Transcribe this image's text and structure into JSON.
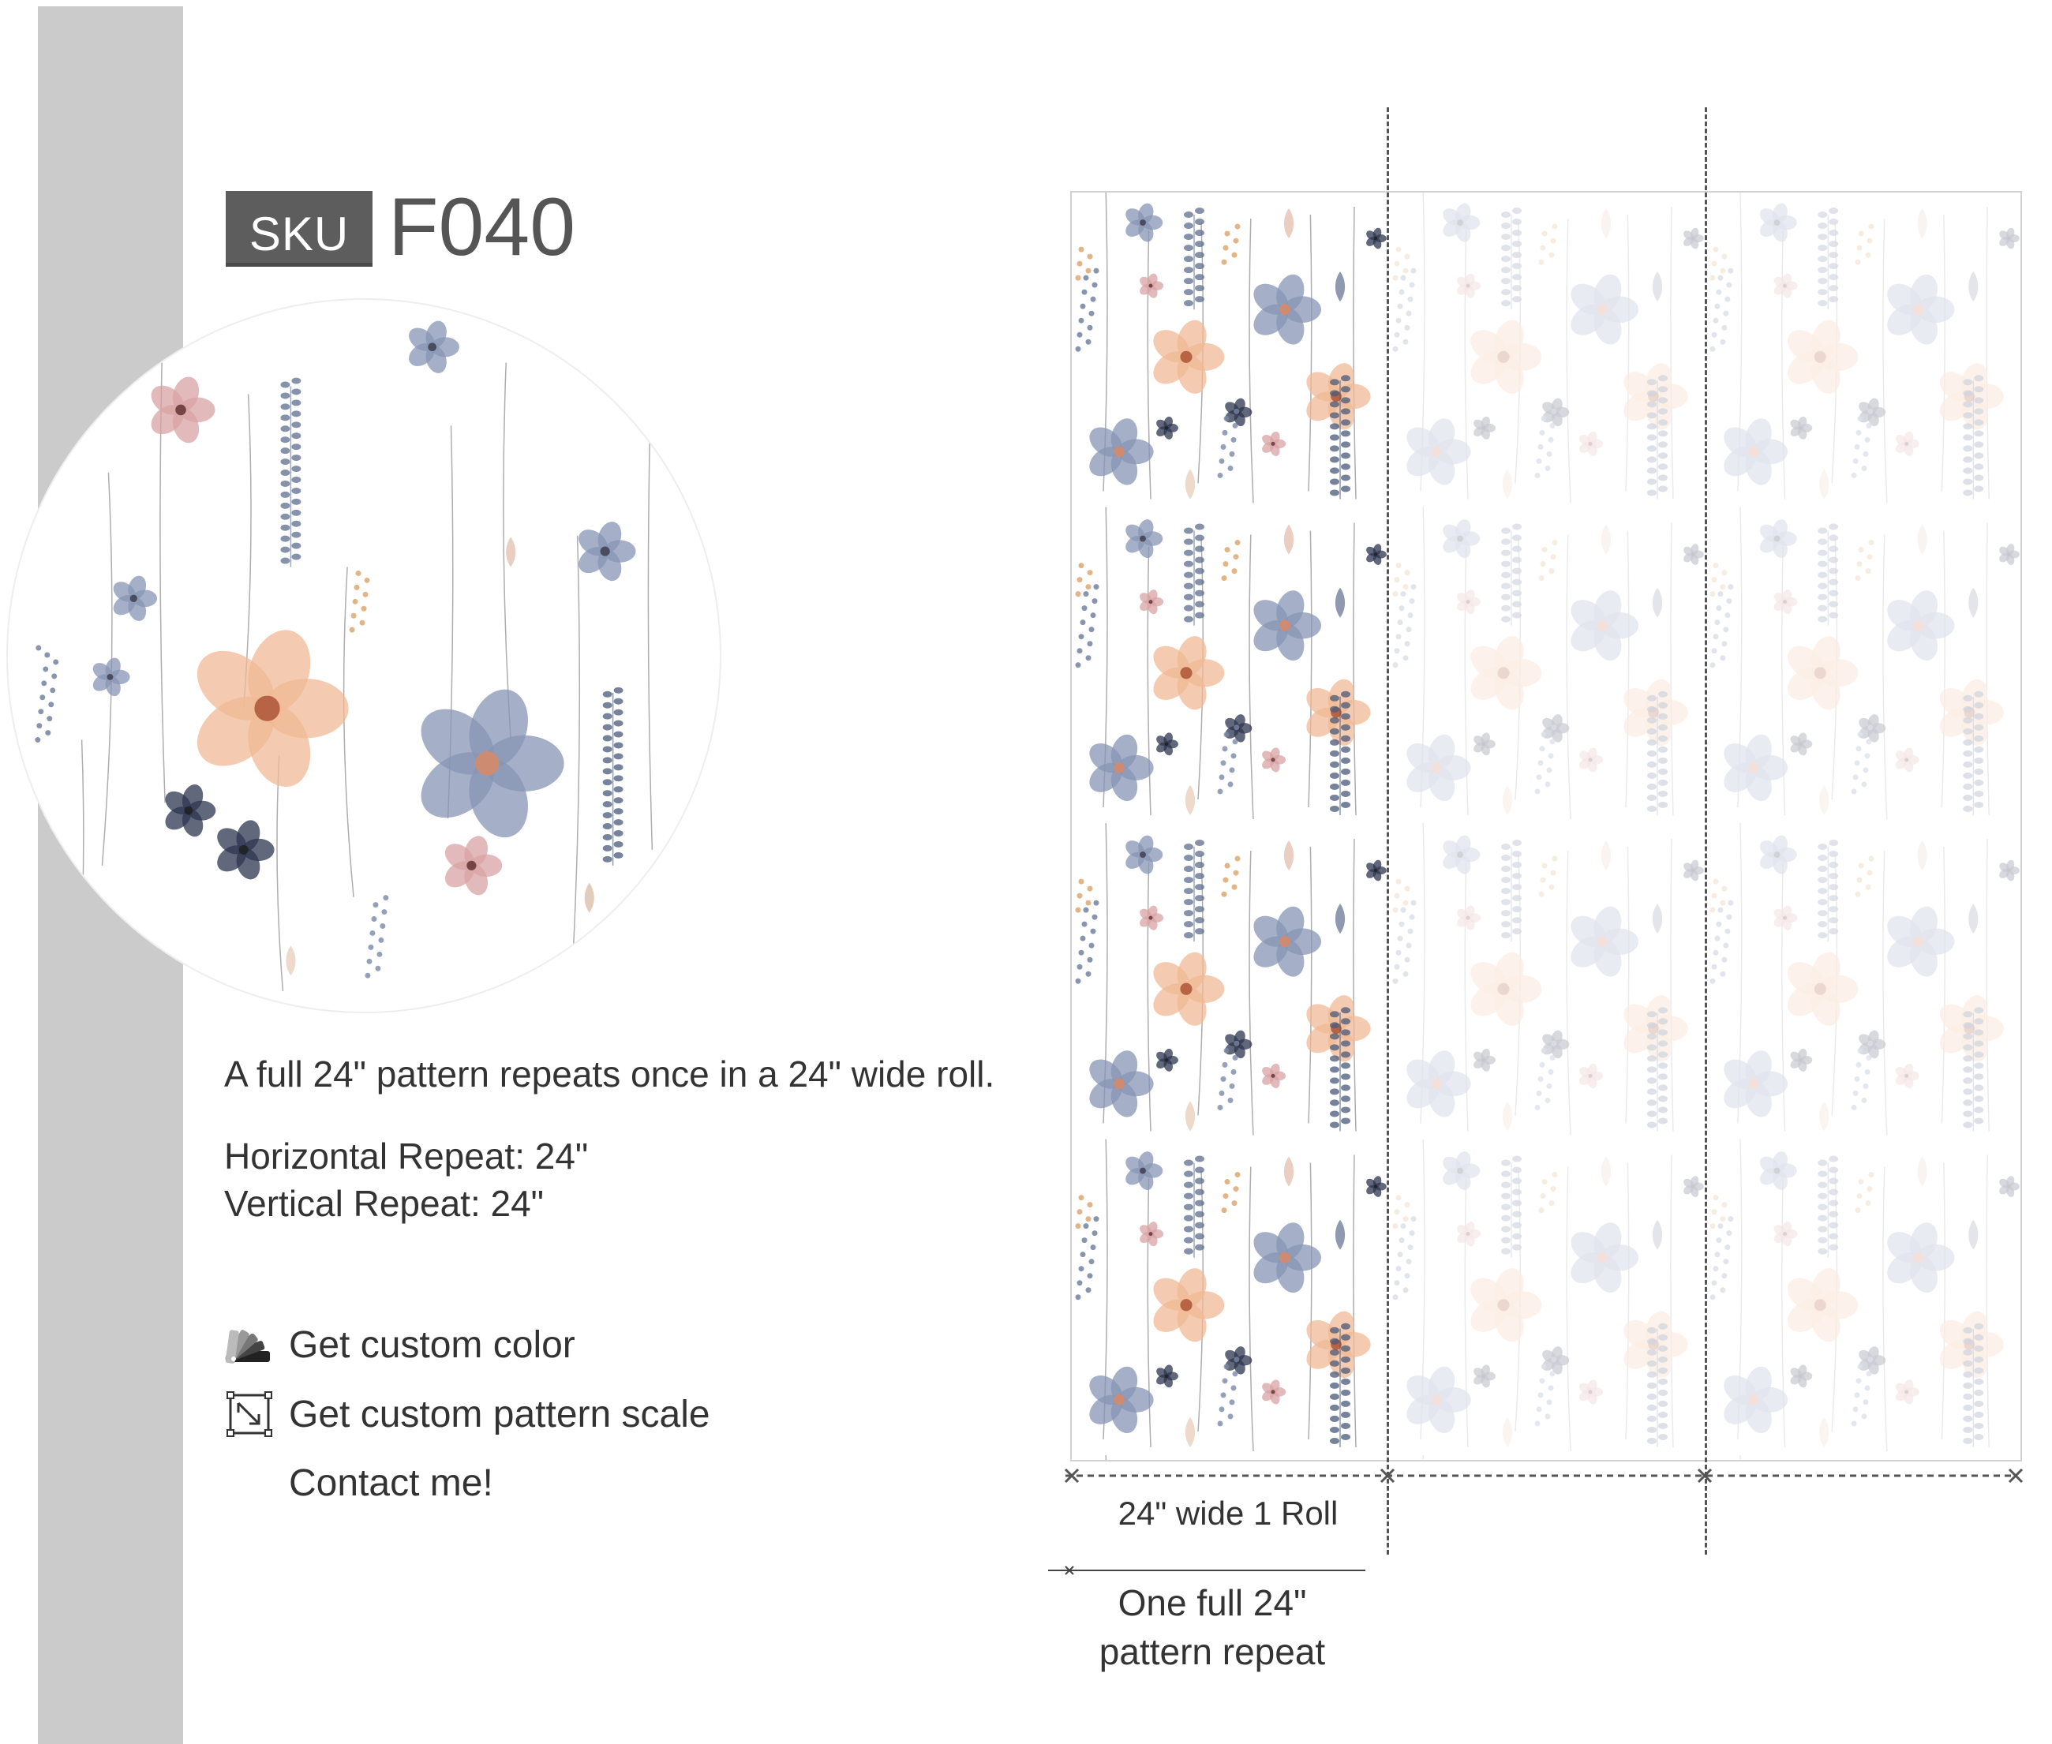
{
  "sku": {
    "label": "SKU",
    "code": "F040"
  },
  "description": "A full 24\" pattern repeats once in a 24\" wide roll.",
  "repeat": {
    "horizontal": "Horizontal Repeat: 24\"",
    "vertical": "Vertical Repeat: 24\""
  },
  "actions": {
    "custom_color": {
      "label": "Get custom color",
      "icon": "color-swatch-fan-icon"
    },
    "custom_scale": {
      "label": "Get custom pattern scale",
      "icon": "resize-scale-icon"
    },
    "contact": {
      "label": "Contact me!"
    }
  },
  "diagram": {
    "roll_label": "24\" wide 1 Roll",
    "repeat_label_line1": "One full 24\"",
    "repeat_label_line2": "pattern repeat"
  },
  "colors": {
    "dusty_blue": "#8796b5",
    "navy": "#2e3550",
    "peach": "#f0b995",
    "blush": "#d9a3a6",
    "ochre": "#d9a268",
    "stem": "#8a8a8a",
    "strip_gray": "#cbcbcb",
    "badge_gray": "#5d5d5d"
  }
}
